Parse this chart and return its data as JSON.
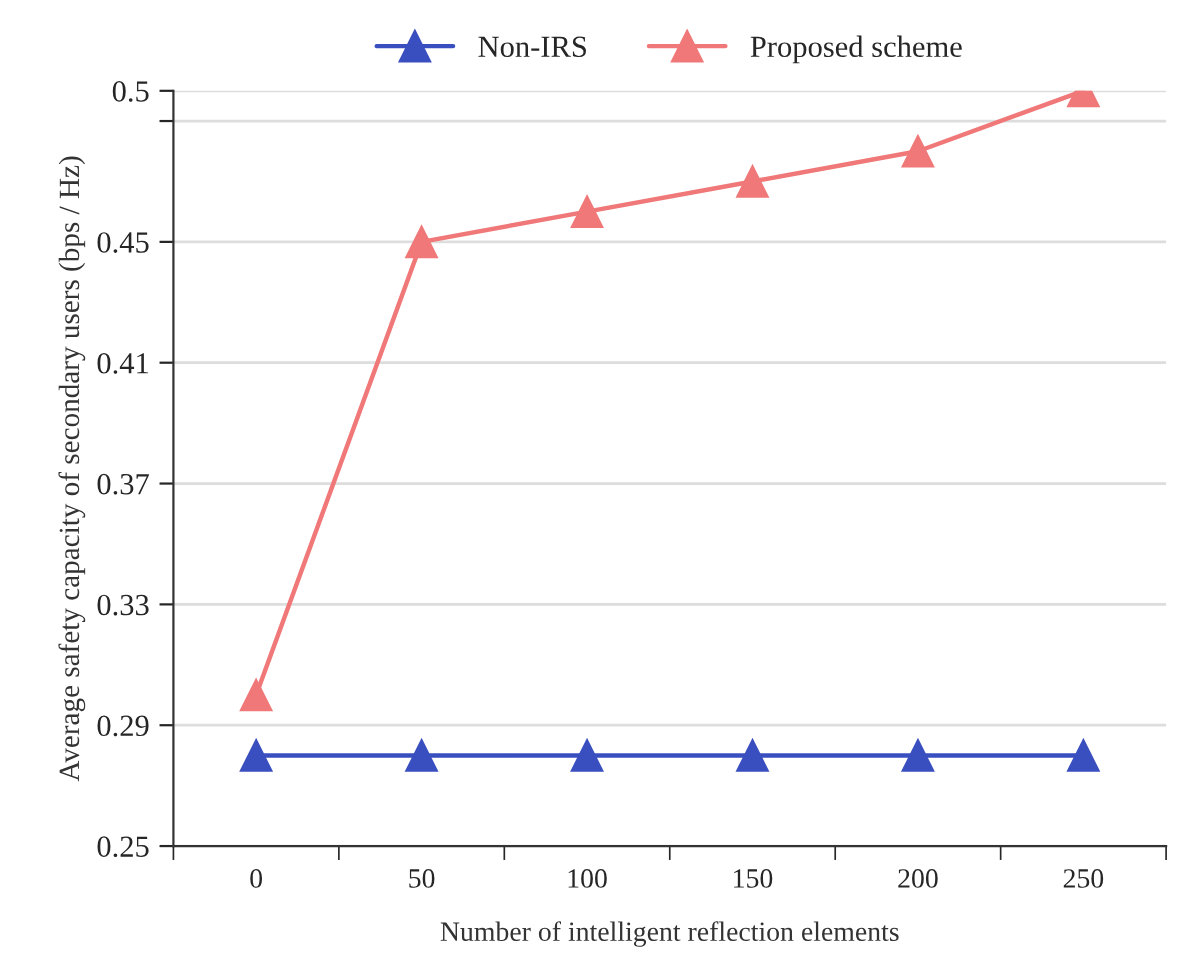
{
  "chart_data": {
    "type": "line",
    "xlabel": "Number of intelligent reflection elements",
    "ylabel": "Average safety capacity of secondary users (bps / Hz)",
    "categories": [
      "0",
      "50",
      "100",
      "150",
      "200",
      "250"
    ],
    "series": [
      {
        "name": "Non-IRS",
        "color": "#3a4fbf",
        "values": [
          0.28,
          0.28,
          0.28,
          0.28,
          0.28,
          0.28
        ]
      },
      {
        "name": "Proposed scheme",
        "color": "#f07878",
        "values": [
          0.3,
          0.45,
          0.46,
          0.47,
          0.48,
          0.5
        ]
      }
    ],
    "ylim": [
      0.25,
      0.5
    ],
    "yticks": [
      0.25,
      0.29,
      0.33,
      0.37,
      0.41,
      0.45,
      {
        "value": 0.49,
        "label": null
      },
      0.5
    ],
    "grid": "y",
    "legend": "top",
    "marker": "triangle",
    "line_style": "solid"
  }
}
